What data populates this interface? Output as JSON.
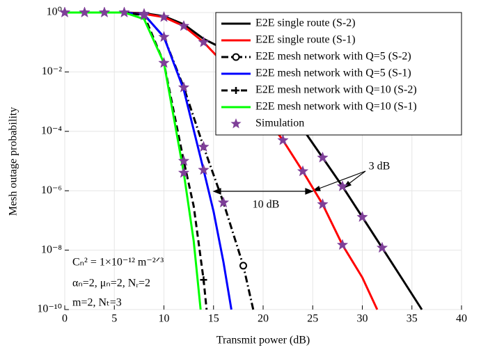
{
  "chart_data": {
    "type": "line",
    "x_label": "Transmit power (dB)",
    "y_label": "Mesh outage probability",
    "xlim": [
      0,
      40
    ],
    "xticks": [
      0,
      5,
      10,
      15,
      20,
      25,
      30,
      35,
      40
    ],
    "ylim": [
      1e-10,
      1
    ],
    "log_y": true,
    "grid": true,
    "legend": "upper right",
    "yticks": [
      {
        "value": 1e-10,
        "label": "10⁻¹⁰"
      },
      {
        "value": 1e-08,
        "label": "10⁻⁸"
      },
      {
        "value": 1e-06,
        "label": "10⁻⁶"
      },
      {
        "value": 0.0001,
        "label": "10⁻⁴"
      },
      {
        "value": 0.01,
        "label": "10⁻²"
      },
      {
        "value": 1,
        "label": "10⁰"
      }
    ],
    "series": [
      {
        "name": "E2E single route (S-2)",
        "color": "#000000",
        "dash": "solid",
        "x": [
          0,
          2,
          4,
          6,
          8,
          10,
          12,
          14,
          16,
          18,
          20,
          22,
          24,
          26,
          28,
          30,
          32,
          34,
          36
        ],
        "values": [
          1,
          1,
          1,
          1,
          0.95,
          0.75,
          0.4,
          0.13,
          0.06,
          0.02,
          0.005,
          0.0009,
          0.00012,
          1.3e-05,
          1.4e-06,
          1.3e-07,
          1.2e-08,
          1.1e-09,
          1e-10
        ]
      },
      {
        "name": "E2E single route (S-1)",
        "color": "#ff0000",
        "dash": "solid",
        "x": [
          0,
          2,
          4,
          6,
          8,
          10,
          12,
          14,
          16,
          18,
          20,
          22,
          24,
          26,
          28,
          30,
          31.5
        ],
        "values": [
          1,
          1,
          1,
          1,
          0.9,
          0.7,
          0.35,
          0.1,
          0.02,
          0.003,
          0.0004,
          5e-05,
          4.5e-06,
          3.5e-07,
          1.5e-08,
          1.2e-09,
          1e-10
        ]
      },
      {
        "name": "E2E mesh network with Q=5 (S-2)",
        "color": "#000000",
        "dash": "dashdot",
        "marker": "circle",
        "marker_x": 18,
        "x": [
          0,
          2,
          4,
          6,
          8,
          10,
          12,
          14,
          16,
          18,
          19
        ],
        "values": [
          1,
          1,
          1,
          1,
          0.85,
          0.15,
          0.003,
          3e-05,
          4e-07,
          3e-09,
          1e-10
        ]
      },
      {
        "name": "E2E mesh network with Q=5 (S-1)",
        "color": "#0000ff",
        "dash": "solid",
        "x": [
          0,
          2,
          4,
          6,
          8,
          10,
          12,
          14,
          15,
          16,
          16.8
        ],
        "values": [
          1,
          1,
          1,
          1,
          0.85,
          0.15,
          0.0025,
          5e-06,
          2e-07,
          4e-09,
          1e-10
        ]
      },
      {
        "name": "E2E mesh network with Q=10 (S-2)",
        "color": "#000000",
        "dash": "dashed",
        "marker": "plus",
        "marker_x": 14,
        "x": [
          0,
          2,
          4,
          6,
          8,
          10,
          12,
          13,
          14,
          14.3
        ],
        "values": [
          1,
          1,
          1,
          1,
          0.8,
          0.02,
          1e-05,
          3e-07,
          1e-09,
          1e-10
        ]
      },
      {
        "name": "E2E mesh network with Q=10 (S-1)",
        "color": "#00ff00",
        "dash": "solid",
        "x": [
          0,
          2,
          4,
          6,
          8,
          10,
          12,
          13,
          13.7
        ],
        "values": [
          1,
          1,
          1,
          1,
          0.6,
          0.02,
          4e-06,
          2e-08,
          1e-10
        ]
      },
      {
        "name": "Simulation",
        "color": "#7e3f98",
        "marker": "star",
        "scatter": true,
        "x": [
          0,
          2,
          4,
          6,
          8,
          8,
          10,
          10,
          10,
          12,
          12,
          12,
          12,
          14,
          14,
          14,
          16,
          22,
          24,
          26,
          26,
          28,
          28,
          30,
          32
        ],
        "values": [
          1,
          1,
          1,
          1,
          0.9,
          0.8,
          0.7,
          0.15,
          0.02,
          0.35,
          0.003,
          1e-05,
          4e-06,
          0.1,
          3e-05,
          5e-06,
          4e-07,
          5e-05,
          4.5e-06,
          1.3e-05,
          3.5e-07,
          1.4e-06,
          1.5e-08,
          1.3e-07,
          1.2e-08
        ]
      }
    ],
    "annotations": [
      "10 dB",
      "3 dB"
    ],
    "parameters": [
      "Cₙ² = 1×10⁻¹² m⁻²ᐟ³",
      "αₙ=2, μₙ=2, Nᵣ=2",
      "m=2, Nₜ=3"
    ]
  }
}
